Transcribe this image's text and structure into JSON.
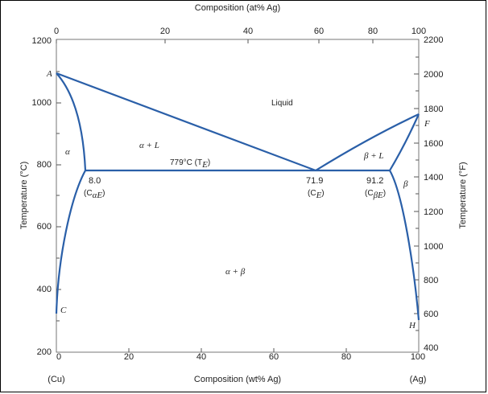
{
  "top_axis": {
    "title": "Composition (at% Ag)",
    "ticks": [
      "0",
      "20",
      "40",
      "60",
      "80",
      "100"
    ]
  },
  "bottom_axis": {
    "title": "Composition (wt% Ag)",
    "ticks": [
      "0",
      "20",
      "40",
      "60",
      "80",
      "100"
    ],
    "left_end": "(Cu)",
    "right_end": "(Ag)"
  },
  "left_axis": {
    "title": "Temperature (°C)",
    "ticks": [
      "200",
      "400",
      "600",
      "800",
      "1000",
      "1200"
    ]
  },
  "right_axis": {
    "title": "Temperature (°F)",
    "ticks": [
      "400",
      "600",
      "800",
      "1000",
      "1200",
      "1400",
      "1600",
      "1800",
      "2000",
      "2200"
    ]
  },
  "points": {
    "A": "A",
    "C": "C",
    "F": "F",
    "H": "H"
  },
  "regions": {
    "liquid": "Liquid",
    "alpha": "α",
    "alpha_L": "α + L",
    "beta_L": "β + L",
    "beta": "β",
    "alpha_beta": "α + β"
  },
  "eutectic": {
    "temp_label": "779°C (T",
    "temp_sub": "E",
    "c_alpha_value": "8.0",
    "c_alpha_label": "(C",
    "c_alpha_sub": "αE",
    "c_e_value": "71.9",
    "c_e_label": "(C",
    "c_e_sub": "E",
    "c_beta_value": "91.2",
    "c_beta_label": "(C",
    "c_beta_sub": "βE"
  },
  "line_color": "#2a5fa8"
}
